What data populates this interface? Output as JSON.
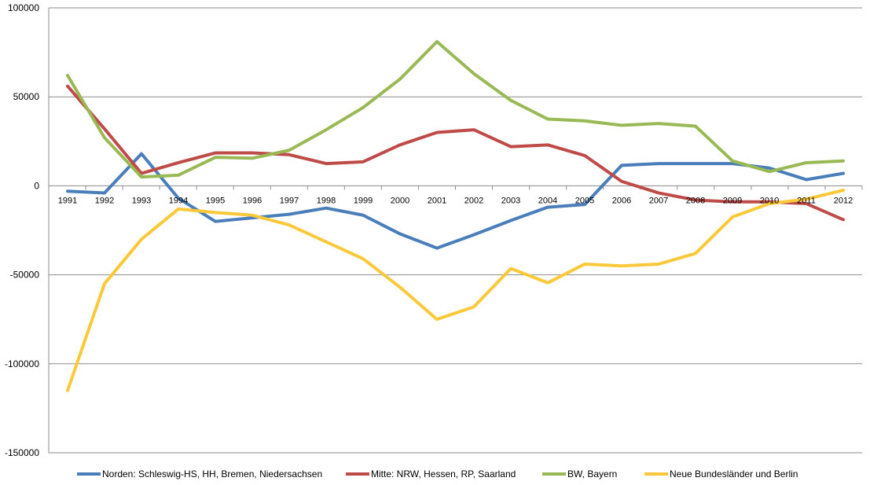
{
  "chart_data": {
    "type": "line",
    "title": "",
    "xlabel": "",
    "ylabel": "",
    "ylim": [
      -150000,
      100000
    ],
    "yticks": [
      100000,
      50000,
      0,
      -50000,
      -100000,
      -150000
    ],
    "ytick_labels": [
      "100000",
      "50000",
      "0",
      "-50000",
      "-100000",
      "-150000"
    ],
    "grid": true,
    "legend_position": "bottom",
    "categories": [
      "1991",
      "1992",
      "1993",
      "1994",
      "1995",
      "1996",
      "1997",
      "1998",
      "1999",
      "2000",
      "2001",
      "2002",
      "2003",
      "2004",
      "2005",
      "2006",
      "2007",
      "2008",
      "2009",
      "2010",
      "2011",
      "2012"
    ],
    "series": [
      {
        "name": "Norden: Schleswig-HS, HH, Bremen, Niedersachsen",
        "color": "#4a7ebb",
        "values": [
          -3000,
          -4000,
          18000,
          -7000,
          -20000,
          -18000,
          -16000,
          -12500,
          -16500,
          -27000,
          -35000,
          -27500,
          -19500,
          -12000,
          -10500,
          11500,
          12500,
          12500,
          12500,
          10000,
          3500,
          7000
        ]
      },
      {
        "name": "Mitte: NRW, Hessen, RP, Saarland",
        "color": "#be4b48",
        "values": [
          56000,
          32000,
          7000,
          13000,
          18500,
          18500,
          17500,
          12500,
          13500,
          23000,
          30000,
          31500,
          22000,
          23000,
          17000,
          2500,
          -4000,
          -8000,
          -9000,
          -9000,
          -10000,
          -19000
        ]
      },
      {
        "name": "BW, Bayern",
        "color": "#98b954",
        "values": [
          62000,
          27000,
          5000,
          6000,
          16000,
          15500,
          20000,
          31500,
          44000,
          60000,
          81000,
          63000,
          48000,
          37500,
          36500,
          34000,
          35000,
          33500,
          14000,
          8000,
          13000,
          14000
        ]
      },
      {
        "name": "Neue Bundesländer und Berlin",
        "color": "#f9c93a",
        "values": [
          -115000,
          -55000,
          -30000,
          -13000,
          -15000,
          -16500,
          -22000,
          -31500,
          -41000,
          -57000,
          -75000,
          -68000,
          -46500,
          -54500,
          -44000,
          -45000,
          -44000,
          -38000,
          -17500,
          -10000,
          -7500,
          -2500
        ]
      }
    ]
  }
}
